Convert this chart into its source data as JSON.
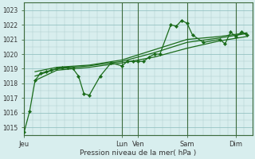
{
  "title": "",
  "xlabel": "Pression niveau de la mer( hPa )",
  "ylim": [
    1014.5,
    1023.5
  ],
  "yticks": [
    1015,
    1016,
    1017,
    1018,
    1019,
    1020,
    1021,
    1022,
    1023
  ],
  "day_labels": [
    "Jeu",
    "Lun",
    "Ven",
    "Sam",
    "Dim"
  ],
  "day_positions": [
    0,
    72,
    84,
    120,
    156
  ],
  "xlim": [
    0,
    168
  ],
  "background_color": "#d8eeee",
  "grid_color": "#aacccc",
  "grid_color_major": "#88bbbb",
  "line_color": "#1a6b1a",
  "text_color": "#333333",
  "series": [
    [
      0,
      1014.7
    ],
    [
      4,
      1016.1
    ],
    [
      8,
      1018.2
    ],
    [
      12,
      1018.7
    ],
    [
      16,
      1018.8
    ],
    [
      20,
      1018.9
    ],
    [
      24,
      1019.0
    ],
    [
      28,
      1019.1
    ],
    [
      32,
      1019.1
    ],
    [
      36,
      1019.0
    ],
    [
      40,
      1018.5
    ],
    [
      44,
      1017.3
    ],
    [
      48,
      1017.2
    ],
    [
      56,
      1018.5
    ],
    [
      64,
      1019.4
    ],
    [
      72,
      1019.2
    ],
    [
      76,
      1019.5
    ],
    [
      80,
      1019.5
    ],
    [
      84,
      1019.5
    ],
    [
      88,
      1019.5
    ],
    [
      92,
      1019.8
    ],
    [
      96,
      1020.0
    ],
    [
      100,
      1020.0
    ],
    [
      108,
      1022.0
    ],
    [
      112,
      1021.9
    ],
    [
      116,
      1022.3
    ],
    [
      120,
      1022.1
    ],
    [
      124,
      1021.3
    ],
    [
      132,
      1020.8
    ],
    [
      144,
      1021.0
    ],
    [
      148,
      1020.7
    ],
    [
      152,
      1021.5
    ],
    [
      156,
      1021.2
    ],
    [
      160,
      1021.5
    ],
    [
      164,
      1021.3
    ]
  ],
  "line2": [
    [
      8,
      1018.2
    ],
    [
      24,
      1018.9
    ],
    [
      48,
      1019.1
    ],
    [
      72,
      1019.4
    ],
    [
      96,
      1019.8
    ],
    [
      120,
      1020.4
    ],
    [
      144,
      1020.9
    ],
    [
      164,
      1021.2
    ]
  ],
  "line3": [
    [
      8,
      1018.5
    ],
    [
      24,
      1019.0
    ],
    [
      48,
      1019.2
    ],
    [
      72,
      1019.5
    ],
    [
      96,
      1020.1
    ],
    [
      120,
      1020.8
    ],
    [
      144,
      1021.1
    ],
    [
      164,
      1021.4
    ]
  ],
  "line4": [
    [
      8,
      1018.8
    ],
    [
      24,
      1019.1
    ],
    [
      48,
      1019.25
    ],
    [
      72,
      1019.6
    ],
    [
      96,
      1020.3
    ],
    [
      120,
      1021.0
    ],
    [
      144,
      1021.2
    ],
    [
      164,
      1021.45
    ]
  ]
}
